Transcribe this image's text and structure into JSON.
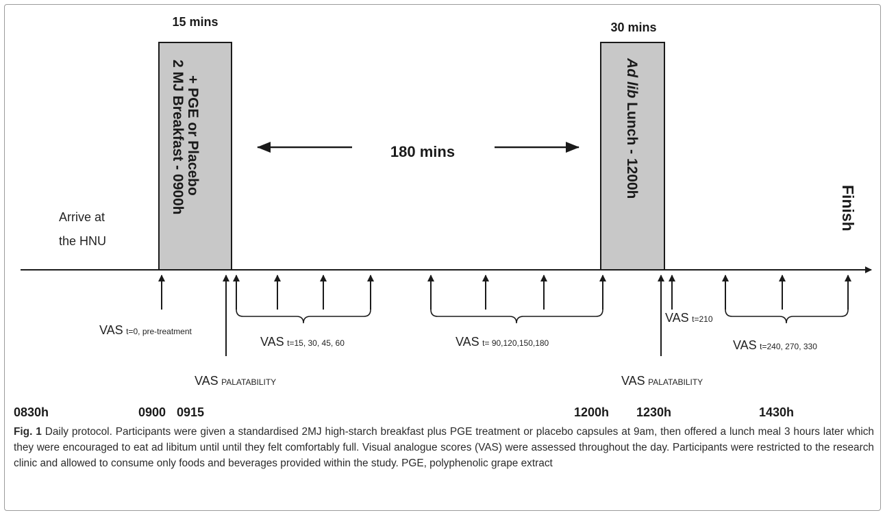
{
  "durations": {
    "breakfast": "15 mins",
    "lunch": "30 mins",
    "interval": "180 mins"
  },
  "blocks": {
    "breakfast_line1": "2 MJ Breakfast - 0900h",
    "breakfast_line2": "+ PGE or Placebo",
    "lunch_italic": "Ad lib",
    "lunch_rest": " Lunch - 1200h"
  },
  "arrive": {
    "line1": "Arrive at",
    "line2": "the HNU"
  },
  "finish": "Finish",
  "vas": {
    "main": "VAS",
    "t0_sub": "t=0, pre-treatment",
    "palatability_sub": "PALATABILITY",
    "t15_sub": "t=15, 30, 45, 60",
    "t90_sub": "t= 90,120,150,180",
    "t210_sub": "t=210",
    "t240_sub": "t=240, 270, 330"
  },
  "times": [
    "0830h",
    "0900",
    "0915",
    "1200h",
    "1230h",
    "1430h"
  ],
  "caption": {
    "label": "Fig. 1",
    "text": " Daily protocol. Participants were given a standardised 2MJ high-starch breakfast plus PGE treatment or placebo capsules at 9am, then offered a lunch meal 3 hours later which they were encouraged to eat ad libitum until until they felt comfortably full. Visual analogue scores (VAS) were assessed throughout the day. Participants were restricted to the research clinic and allowed to consume only foods and beverages provided within the study. PGE, polyphenolic grape extract"
  },
  "colors": {
    "block_fill": "#c8c8c8",
    "line": "#1a1a1a"
  }
}
